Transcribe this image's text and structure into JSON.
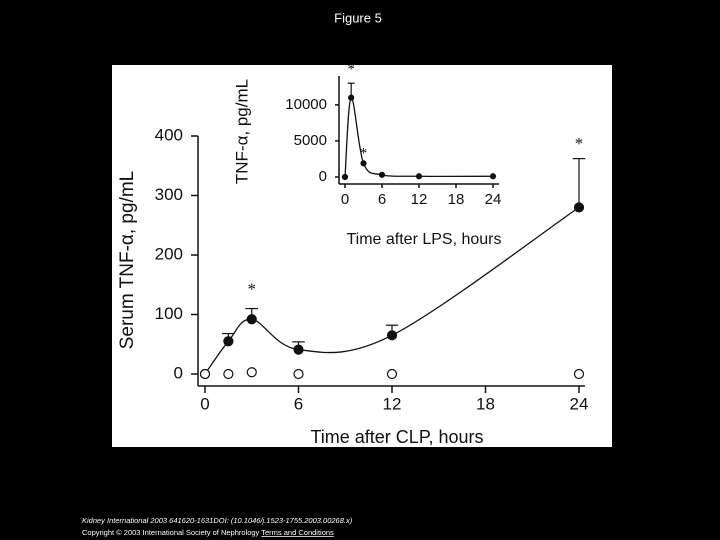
{
  "title": "Figure 5",
  "chart_data": [
    {
      "type": "line",
      "x_label": "Time after CLP, hours",
      "y_label": "Serum TNF-α, pg/mL",
      "x": [
        0,
        1.5,
        3,
        6,
        12,
        24
      ],
      "series": [
        {
          "marker": "filled",
          "color": "#111111",
          "smooth": true,
          "values": [
            0,
            55,
            92,
            41,
            65,
            280
          ],
          "errors": [
            null,
            13,
            18,
            13,
            17,
            82
          ]
        },
        {
          "marker": "open",
          "color": "#111111",
          "smooth": false,
          "values": [
            0,
            0,
            3,
            0,
            0,
            0
          ]
        }
      ],
      "annotations": [
        {
          "text": "*",
          "x": 3,
          "y": 140
        },
        {
          "text": "*",
          "x": 24,
          "y": 385
        }
      ],
      "xlim": [
        0,
        24
      ],
      "xticks": [
        0,
        6,
        12,
        18,
        24
      ],
      "ylim": [
        0,
        400
      ],
      "yticks": [
        0,
        100,
        200,
        300,
        400
      ]
    },
    {
      "type": "line",
      "x_label": "Time after LPS, hours",
      "y_label": "TNF-α, pg/mL",
      "x": [
        0,
        1,
        3,
        6,
        12,
        24
      ],
      "series": [
        {
          "marker": "filled",
          "color": "#111111",
          "smooth": true,
          "values": [
            0,
            11000,
            1900,
            300,
            100,
            100
          ],
          "errors": [
            null,
            2000,
            null,
            null,
            null,
            null
          ]
        }
      ],
      "annotations": [
        {
          "text": "*",
          "x": 1,
          "y": 14800
        },
        {
          "text": "*",
          "x": 3,
          "y": 3200
        }
      ],
      "xlim": [
        0,
        24
      ],
      "xticks": [
        0,
        6,
        12,
        18,
        24
      ],
      "ylim": [
        0,
        14000
      ],
      "yticks": [
        0,
        5000,
        10000
      ]
    }
  ],
  "footer": {
    "citation": "Kidney International 2003 641620-1631DOI: (10.1046/j.1523-1755.2003.00268.x)",
    "copyright": "Copyright © 2003 International Society of Nephrology",
    "link": "Terms and Conditions"
  }
}
